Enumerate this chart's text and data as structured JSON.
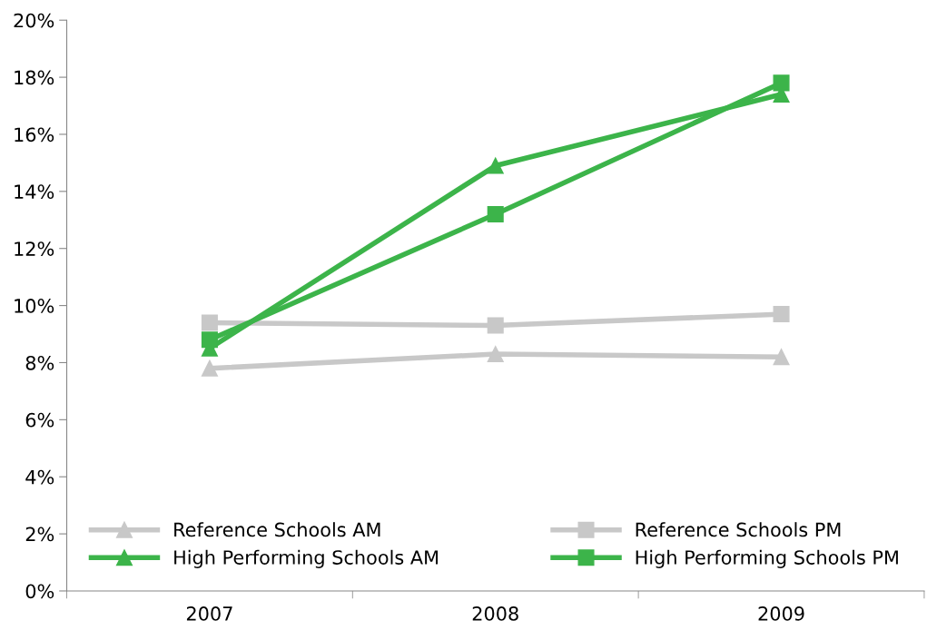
{
  "chart_data": {
    "type": "line",
    "categories": [
      "2007",
      "2008",
      "2009"
    ],
    "series": [
      {
        "name": "Reference Schools AM",
        "color": "#c8c8c8",
        "marker": "triangle",
        "values": [
          7.8,
          8.3,
          8.2
        ]
      },
      {
        "name": "Reference Schools PM",
        "color": "#c8c8c8",
        "marker": "square",
        "values": [
          9.4,
          9.3,
          9.7
        ]
      },
      {
        "name": "High Performing Schools AM",
        "color": "#3cb44a",
        "marker": "triangle",
        "values": [
          8.5,
          14.9,
          17.4
        ]
      },
      {
        "name": "High Performing Schools PM",
        "color": "#3cb44a",
        "marker": "square",
        "values": [
          8.8,
          13.2,
          17.8
        ]
      }
    ],
    "ylim": [
      0,
      20
    ],
    "yticks": [
      {
        "value": 0,
        "label": "0%"
      },
      {
        "value": 2,
        "label": "2%"
      },
      {
        "value": 4,
        "label": "4%"
      },
      {
        "value": 6,
        "label": "6%"
      },
      {
        "value": 8,
        "label": "8%"
      },
      {
        "value": 10,
        "label": "10%"
      },
      {
        "value": 12,
        "label": "12%"
      },
      {
        "value": 14,
        "label": "14%"
      },
      {
        "value": 16,
        "label": "16%"
      },
      {
        "value": 18,
        "label": "18%"
      },
      {
        "value": 20,
        "label": "20%"
      }
    ],
    "grid": false,
    "legend": "bottom",
    "line_style": "solid"
  }
}
